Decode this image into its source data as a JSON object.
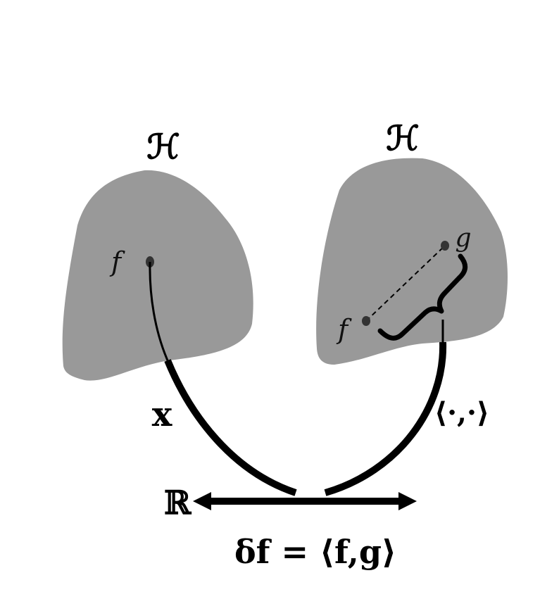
{
  "left_space": {
    "label": "ℋ",
    "point_label": "f"
  },
  "right_space": {
    "label": "ℋ",
    "point_labels": [
      "f",
      "g"
    ]
  },
  "left_map_label": "x",
  "right_map_label": "⟨·,·⟩",
  "axis_start_label": "ℝ",
  "equation": "δf = ⟨f,g⟩",
  "colors": {
    "blob": "#999999",
    "ink": "#000000",
    "point": "#333333"
  }
}
